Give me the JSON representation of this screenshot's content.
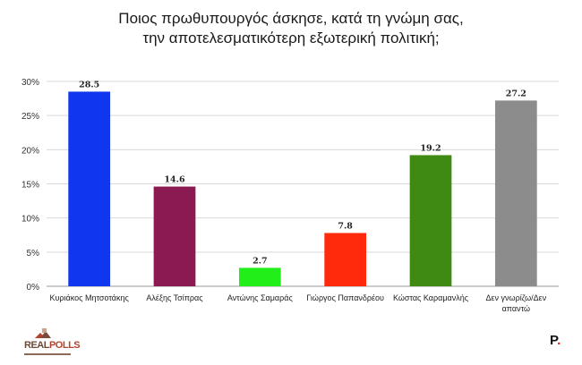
{
  "title_lines": [
    "Ποιος πρωθυπουργός άσκησε, κατά τη γνώμη σας,",
    "την αποτελεσματικότερη εξωτερική πολιτική;"
  ],
  "brand": {
    "logo_part1": "REAL",
    "logo_part2": "POLLS",
    "corner_logo": "P",
    "corner_logo_dot": "."
  },
  "chart_data": {
    "type": "bar",
    "title": "Ποιος πρωθυπουργός άσκησε, κατά τη γνώμη σας, την αποτελεσματικότερη εξωτερική πολιτική;",
    "categories": [
      [
        "Κυριάκος Μητσοτάκης"
      ],
      [
        "Αλέξης Τσίπρας"
      ],
      [
        "Αντώνης Σαμαράς"
      ],
      [
        "Γιώργος Παπανδρέου"
      ],
      [
        "Κώστας Καραμανλής"
      ],
      [
        "Δεν γνωρίζω/Δεν",
        "απαντώ"
      ]
    ],
    "values": [
      28.5,
      14.6,
      2.7,
      7.8,
      19.2,
      27.2
    ],
    "value_labels": [
      "28.5",
      "14.6",
      "2.7",
      "7.8",
      "19.2",
      "27.2"
    ],
    "colors": [
      "#1036f0",
      "#8c1a52",
      "#22ee1a",
      "#ff2a0c",
      "#3f8a12",
      "#8c8c8c"
    ],
    "ylim": [
      0,
      30
    ],
    "yticks": [
      0,
      5,
      10,
      15,
      20,
      25,
      30
    ],
    "ytick_labels": [
      "0%",
      "5%",
      "10%",
      "15%",
      "20%",
      "25%",
      "30%"
    ],
    "grid": true,
    "xlabel": "",
    "ylabel": ""
  }
}
